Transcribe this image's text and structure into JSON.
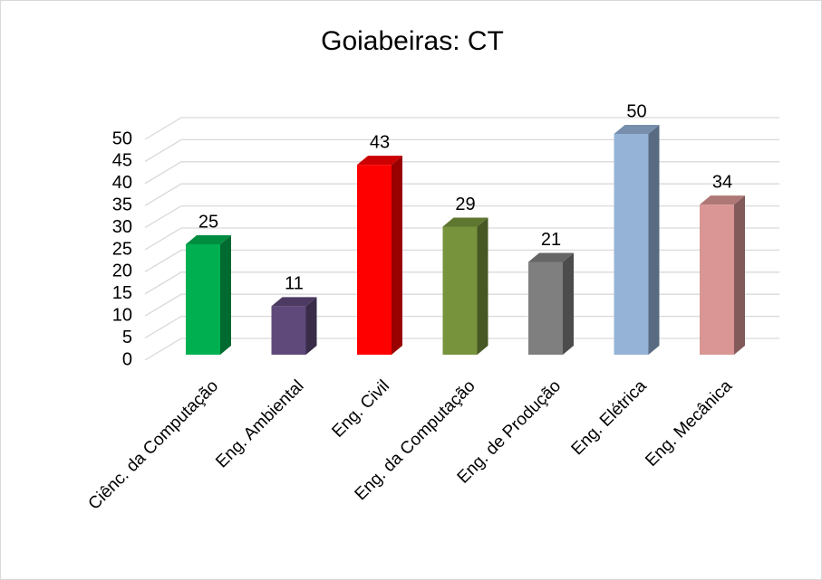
{
  "chart_data": {
    "type": "bar",
    "title": "Goiabeiras: CT",
    "categories": [
      "Ciênc. da Computação",
      "Eng. Ambiental",
      "Eng. Civil",
      "Eng. da Computação",
      "Eng. de Produção",
      "Eng. Elétrica",
      "Eng. Mecânica"
    ],
    "values": [
      25,
      11,
      43,
      29,
      21,
      50,
      34
    ],
    "colors": [
      "#00b050",
      "#5f497a",
      "#ff0000",
      "#77933c",
      "#7f7f7f",
      "#95b3d7",
      "#d99694"
    ],
    "ylim": [
      0,
      50
    ],
    "yticks": [
      0,
      5,
      10,
      15,
      20,
      25,
      30,
      35,
      40,
      45,
      50
    ],
    "grid": true
  }
}
